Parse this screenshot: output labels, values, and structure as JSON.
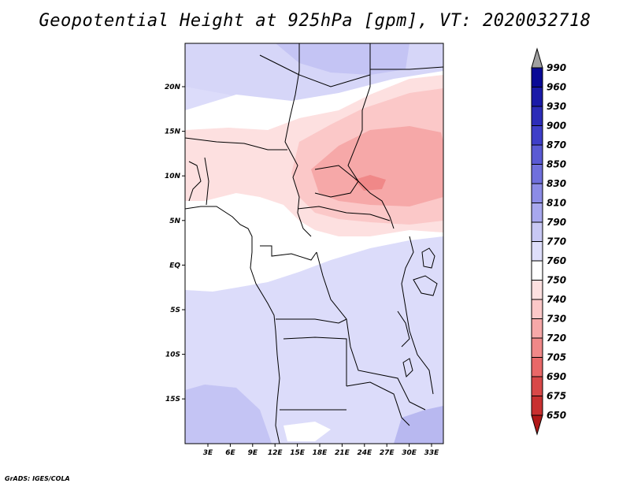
{
  "title": "Geopotential Height at 925hPa [gpm], VT: 2020032718",
  "footer": "GrADS: IGES/COLA",
  "lat_labels": [
    "20N",
    "15N",
    "10N",
    "5N",
    "EQ",
    "5S",
    "10S",
    "15S"
  ],
  "lon_labels": [
    "3E",
    "6E",
    "9E",
    "12E",
    "15E",
    "18E",
    "21E",
    "24E",
    "27E",
    "30E",
    "33E"
  ],
  "colorbar": {
    "levels": [
      "990",
      "960",
      "930",
      "900",
      "870",
      "850",
      "830",
      "810",
      "790",
      "770",
      "760",
      "750",
      "740",
      "730",
      "720",
      "705",
      "690",
      "675",
      "650"
    ],
    "colors": [
      "#0a0a96",
      "#1a1aa8",
      "#2c2cb8",
      "#3e3ec8",
      "#5a5ad4",
      "#7070dc",
      "#8c8ce6",
      "#a8a8ee",
      "#c8c8f4",
      "#dedefa",
      "#ffffff",
      "#fde0e0",
      "#fbc8c8",
      "#f6a8a8",
      "#f08888",
      "#e86868",
      "#d84848",
      "#c83030",
      "#b01818"
    ],
    "top_arrow_color": "#a0a0a0",
    "bottom_arrow_color": "#b01818"
  }
}
